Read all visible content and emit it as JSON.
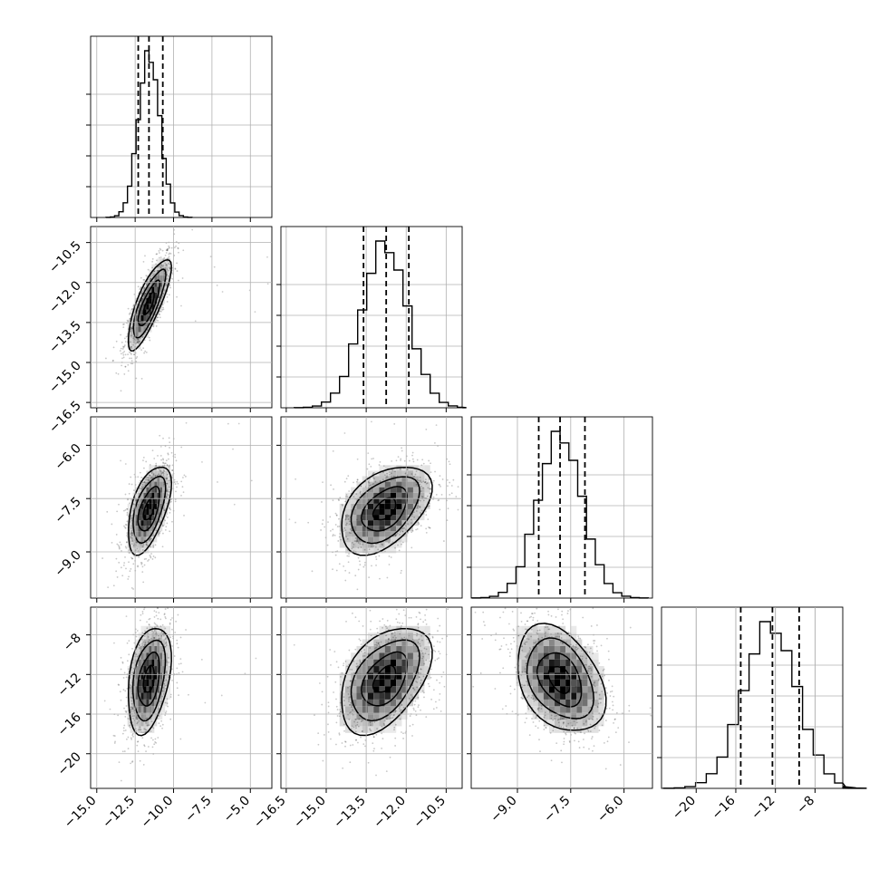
{
  "chart_data": {
    "type": "corner",
    "grid": true,
    "parameters": [
      {
        "index": 0,
        "lim": [
          -15.4,
          -3.6
        ],
        "ticks": [
          -15.0,
          -12.5,
          -10.0,
          -7.5,
          -5.0
        ],
        "tick_labels": [
          "−15.0",
          "−12.5",
          "−10.0",
          "−7.5",
          "−5.0"
        ],
        "quantiles": [
          -12.3,
          -11.6,
          -10.7
        ],
        "mean": -11.6,
        "sd": 0.7
      },
      {
        "index": 1,
        "lim": [
          -16.7,
          -9.9
        ],
        "ticks": [
          -16.5,
          -15.0,
          -13.5,
          -12.0,
          -10.5
        ],
        "tick_labels": [
          "−16.5",
          "−15.0",
          "−13.5",
          "−12.0",
          "−10.5"
        ],
        "quantiles": [
          -13.6,
          -12.75,
          -11.9
        ],
        "mean": -12.8,
        "sd": 0.85
      },
      {
        "index": 2,
        "lim": [
          -10.3,
          -5.2
        ],
        "ticks": [
          -9.0,
          -7.5,
          -6.0
        ],
        "tick_labels": [
          "−9.0",
          "−7.5",
          "−6.0"
        ],
        "quantiles": [
          -8.4,
          -7.8,
          -7.1
        ],
        "mean": -7.8,
        "sd": 0.62
      },
      {
        "index": 3,
        "lim": [
          -23.5,
          -5.2
        ],
        "ticks": [
          -20,
          -16,
          -12,
          -8
        ],
        "tick_labels": [
          "−20",
          "−16",
          "−12",
          "−8"
        ],
        "quantiles": [
          -15.5,
          -12.3,
          -9.6
        ],
        "mean": -12.5,
        "sd": 2.7
      }
    ],
    "correlations": {
      "0-1": 0.8,
      "0-2": 0.55,
      "0-3": 0.35,
      "1-2": 0.45,
      "1-3": 0.45,
      "2-3": -0.35
    },
    "contour_levels": [
      "0.5 sigma",
      "1 sigma",
      "1.5 sigma",
      "2 sigma"
    ],
    "xlabel": "",
    "ylabel": "",
    "title": ""
  }
}
